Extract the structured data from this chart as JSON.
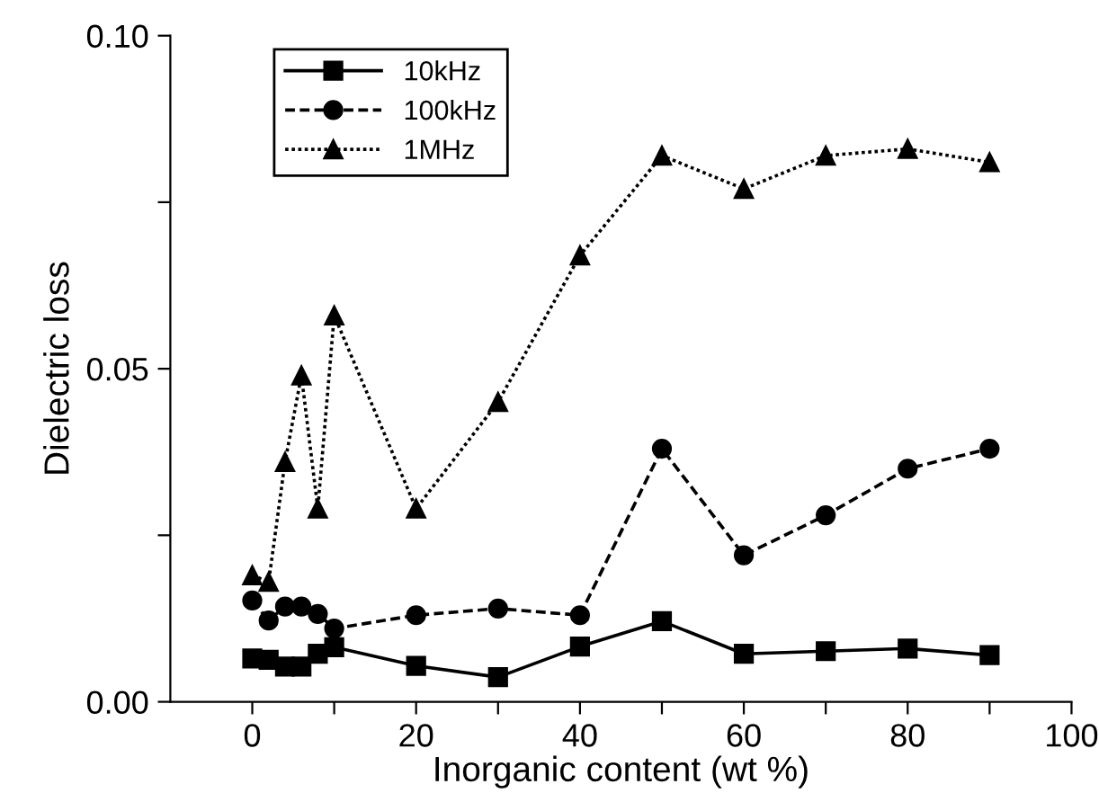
{
  "chart_data": {
    "type": "line",
    "xlabel": "Inorganic content (wt %)",
    "ylabel": "Dielectric loss",
    "x": [
      0,
      2,
      4,
      6,
      8,
      10,
      20,
      30,
      40,
      50,
      60,
      70,
      80,
      90
    ],
    "series": [
      {
        "name": "10kHz",
        "color": "#000000",
        "marker": "square",
        "line_style": "solid",
        "values": [
          0.0065,
          0.0063,
          0.0053,
          0.0053,
          0.0072,
          0.0082,
          0.0054,
          0.0037,
          0.0083,
          0.0121,
          0.0072,
          0.0076,
          0.008,
          0.007
        ]
      },
      {
        "name": "100kHz",
        "color": "#000000",
        "marker": "circle",
        "line_style": "dashed",
        "values": [
          0.0152,
          0.0122,
          0.0143,
          0.0143,
          0.0132,
          0.011,
          0.013,
          0.014,
          0.013,
          0.038,
          0.022,
          0.028,
          0.035,
          0.038
        ]
      },
      {
        "name": "1MHz",
        "color": "#000000",
        "marker": "triangle",
        "line_style": "dotted",
        "values": [
          0.019,
          0.018,
          0.036,
          0.049,
          0.029,
          0.058,
          0.029,
          0.045,
          0.067,
          0.082,
          0.077,
          0.082,
          0.083,
          0.081
        ]
      }
    ],
    "xlim": [
      -10,
      100
    ],
    "xticks": [
      0,
      {
        "value": 10,
        "label": null
      },
      20,
      {
        "value": 30,
        "label": null
      },
      40,
      {
        "value": 50,
        "label": null
      },
      60,
      {
        "value": 70,
        "label": null
      },
      80,
      {
        "value": 90,
        "label": null
      },
      100
    ],
    "ylim": [
      0,
      0.1
    ],
    "yticks": [
      {
        "value": 0,
        "label": "0.00"
      },
      {
        "value": 0.025,
        "label": null
      },
      0.05,
      {
        "value": 0.075,
        "label": null
      },
      {
        "value": 0.1,
        "label": "0.10"
      }
    ],
    "grid": false,
    "legend": "top left"
  }
}
